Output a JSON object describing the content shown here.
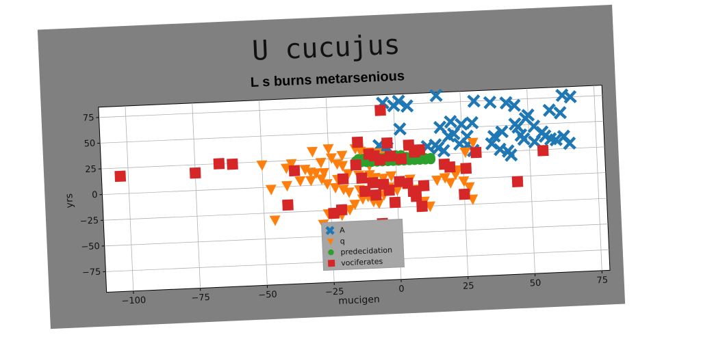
{
  "chart_data": {
    "type": "scatter",
    "title": "U cucujus",
    "subtitle": "L s burns metarsenious",
    "xlabel": "mucigen",
    "ylabel": "yrs",
    "xlim": [
      -110,
      78
    ],
    "ylim": [
      -95,
      85
    ],
    "xticks": [
      -100,
      -75,
      -50,
      -25,
      0,
      25,
      50,
      75
    ],
    "yticks": [
      -75,
      -50,
      -25,
      0,
      25,
      50,
      75
    ],
    "xtick_labels": [
      "−100",
      "−75",
      "−50",
      "−25",
      "0",
      "25",
      "50",
      "75"
    ],
    "ytick_labels": [
      "−75",
      "−50",
      "−25",
      "0",
      "25",
      "50",
      "75"
    ],
    "grid": true,
    "legend_position": "lower-center",
    "series": [
      {
        "name": "A",
        "color": "#1f77b4",
        "marker": "x",
        "points": [
          [
            -4,
            77
          ],
          [
            2,
            78
          ],
          [
            5,
            73
          ],
          [
            0,
            74
          ],
          [
            16,
            82
          ],
          [
            30,
            75
          ],
          [
            36,
            73
          ],
          [
            42,
            72
          ],
          [
            45,
            69
          ],
          [
            58,
            63
          ],
          [
            62,
            60
          ],
          [
            63,
            77
          ],
          [
            66,
            75
          ],
          [
            17,
            51
          ],
          [
            21,
            56
          ],
          [
            25,
            53
          ],
          [
            29,
            54
          ],
          [
            22,
            44
          ],
          [
            20,
            42
          ],
          [
            27,
            41
          ],
          [
            2,
            51
          ],
          [
            45,
            51
          ],
          [
            46,
            48
          ],
          [
            49,
            56
          ],
          [
            50,
            59
          ],
          [
            52,
            48
          ],
          [
            55,
            42
          ],
          [
            56,
            38
          ],
          [
            58,
            35
          ],
          [
            60,
            34
          ],
          [
            63,
            37
          ],
          [
            47,
            40
          ],
          [
            48,
            36
          ],
          [
            52,
            33
          ],
          [
            40,
            44
          ],
          [
            37,
            40
          ],
          [
            36,
            33
          ],
          [
            39,
            27
          ],
          [
            42,
            25
          ],
          [
            12,
            33
          ],
          [
            15,
            34
          ],
          [
            16,
            31
          ],
          [
            18,
            28
          ],
          [
            24,
            34
          ],
          [
            27,
            33
          ],
          [
            -3,
            33
          ],
          [
            -4,
            29
          ],
          [
            65,
            30
          ],
          [
            43,
            21
          ],
          [
            29,
            27
          ],
          [
            -6,
            36
          ]
        ]
      },
      {
        "name": "q",
        "color": "#ff7f0e",
        "marker": "triangle-down",
        "points": [
          [
            -31,
            33
          ],
          [
            -25,
            35
          ],
          [
            -20,
            28
          ],
          [
            -15,
            34
          ],
          [
            -13,
            31
          ],
          [
            -10,
            30
          ],
          [
            -7,
            29
          ],
          [
            -4,
            26
          ],
          [
            -24,
            26
          ],
          [
            -28,
            22
          ],
          [
            -22,
            20
          ],
          [
            -20,
            18
          ],
          [
            -39,
            22
          ],
          [
            -41,
            18
          ],
          [
            -34,
            16
          ],
          [
            -32,
            13
          ],
          [
            -30,
            12
          ],
          [
            -27,
            12
          ],
          [
            -50,
            22
          ],
          [
            -47,
            -2
          ],
          [
            -41,
            1
          ],
          [
            -36,
            5
          ],
          [
            -32,
            5
          ],
          [
            -28,
            6
          ],
          [
            -22,
            5
          ],
          [
            -18,
            10
          ],
          [
            -14,
            8
          ],
          [
            -10,
            8
          ],
          [
            -8,
            5
          ],
          [
            -5,
            4
          ],
          [
            -2,
            6
          ],
          [
            -26,
            1
          ],
          [
            -23,
            -3
          ],
          [
            -20,
            -5
          ],
          [
            -18,
            -8
          ],
          [
            -14,
            -6
          ],
          [
            -13,
            -15
          ],
          [
            -11,
            -13
          ],
          [
            -9,
            -18
          ],
          [
            -7,
            -20
          ],
          [
            -5,
            -12
          ],
          [
            -16,
            -20
          ],
          [
            -18,
            -25
          ],
          [
            -21,
            -30
          ],
          [
            -26,
            -28
          ],
          [
            -28,
            -38
          ],
          [
            -46,
            -32
          ],
          [
            -3,
            -5
          ],
          [
            0,
            -8
          ],
          [
            3,
            -2
          ],
          [
            5,
            2
          ],
          [
            8,
            -8
          ],
          [
            10,
            -20
          ],
          [
            12,
            -25
          ],
          [
            15,
            0
          ],
          [
            18,
            2
          ],
          [
            20,
            -3
          ],
          [
            22,
            5
          ],
          [
            25,
            -2
          ],
          [
            27,
            -8
          ],
          [
            28,
            -20
          ],
          [
            26,
            26
          ],
          [
            29,
            35
          ],
          [
            23,
            9
          ],
          [
            -10,
            17
          ]
        ]
      },
      {
        "name": "predecidation",
        "color": "#2ca02c",
        "marker": "circle",
        "points": [
          [
            -14,
            24
          ],
          [
            -12,
            24
          ],
          [
            -10,
            24
          ],
          [
            -8,
            24
          ],
          [
            -6,
            24
          ],
          [
            -4,
            24
          ],
          [
            -2,
            24
          ],
          [
            0,
            24
          ],
          [
            2,
            24
          ],
          [
            4,
            24
          ],
          [
            6,
            24
          ],
          [
            -13,
            22
          ],
          [
            -11,
            22
          ],
          [
            -9,
            22
          ],
          [
            -7,
            22
          ],
          [
            -5,
            22
          ],
          [
            -3,
            22
          ],
          [
            -1,
            22
          ],
          [
            1,
            22
          ],
          [
            3,
            22
          ],
          [
            5,
            22
          ],
          [
            7,
            22
          ],
          [
            9,
            22
          ],
          [
            -11,
            20
          ],
          [
            -9,
            20
          ],
          [
            -7,
            20
          ],
          [
            -5,
            20
          ],
          [
            -3,
            20
          ],
          [
            -1,
            20
          ],
          [
            1,
            20
          ],
          [
            3,
            20
          ],
          [
            5,
            20
          ],
          [
            7,
            20
          ],
          [
            9,
            20
          ],
          [
            11,
            20
          ],
          [
            -2,
            26
          ],
          [
            0,
            26
          ],
          [
            2,
            26
          ],
          [
            -8,
            26
          ],
          [
            8,
            26
          ],
          [
            11,
            22
          ],
          [
            13,
            22
          ],
          [
            13,
            20
          ],
          [
            -13,
            20
          ],
          [
            -15,
            22
          ]
        ]
      },
      {
        "name": "vociferates",
        "color": "#d62728",
        "marker": "square",
        "points": [
          [
            -103,
            17
          ],
          [
            -75,
            17
          ],
          [
            -66,
            25
          ],
          [
            -61,
            24
          ],
          [
            -38,
            15
          ],
          [
            -41,
            -18
          ],
          [
            -14,
            40
          ],
          [
            -5,
            70
          ],
          [
            -3,
            38
          ],
          [
            5,
            35
          ],
          [
            -10,
            28
          ],
          [
            -8,
            26
          ],
          [
            -6,
            22
          ],
          [
            -2,
            25
          ],
          [
            2,
            22
          ],
          [
            7,
            28
          ],
          [
            9,
            30
          ],
          [
            -15,
            18
          ],
          [
            -20,
            5
          ],
          [
            -13,
            5
          ],
          [
            -9,
            0
          ],
          [
            -5,
            -2
          ],
          [
            -3,
            -8
          ],
          [
            -8,
            -12
          ],
          [
            -12,
            -8
          ],
          [
            1,
            0
          ],
          [
            4,
            -2
          ],
          [
            6,
            -10
          ],
          [
            7,
            -15
          ],
          [
            -1,
            -20
          ],
          [
            9,
            -25
          ],
          [
            -21,
            -25
          ],
          [
            -24,
            -28
          ],
          [
            -6,
            -40
          ],
          [
            18,
            15
          ],
          [
            20,
            12
          ],
          [
            25,
            -15
          ],
          [
            26,
            10
          ],
          [
            30,
            25
          ],
          [
            55,
            24
          ],
          [
            45,
            -5
          ],
          [
            10,
            -5
          ]
        ]
      }
    ]
  }
}
